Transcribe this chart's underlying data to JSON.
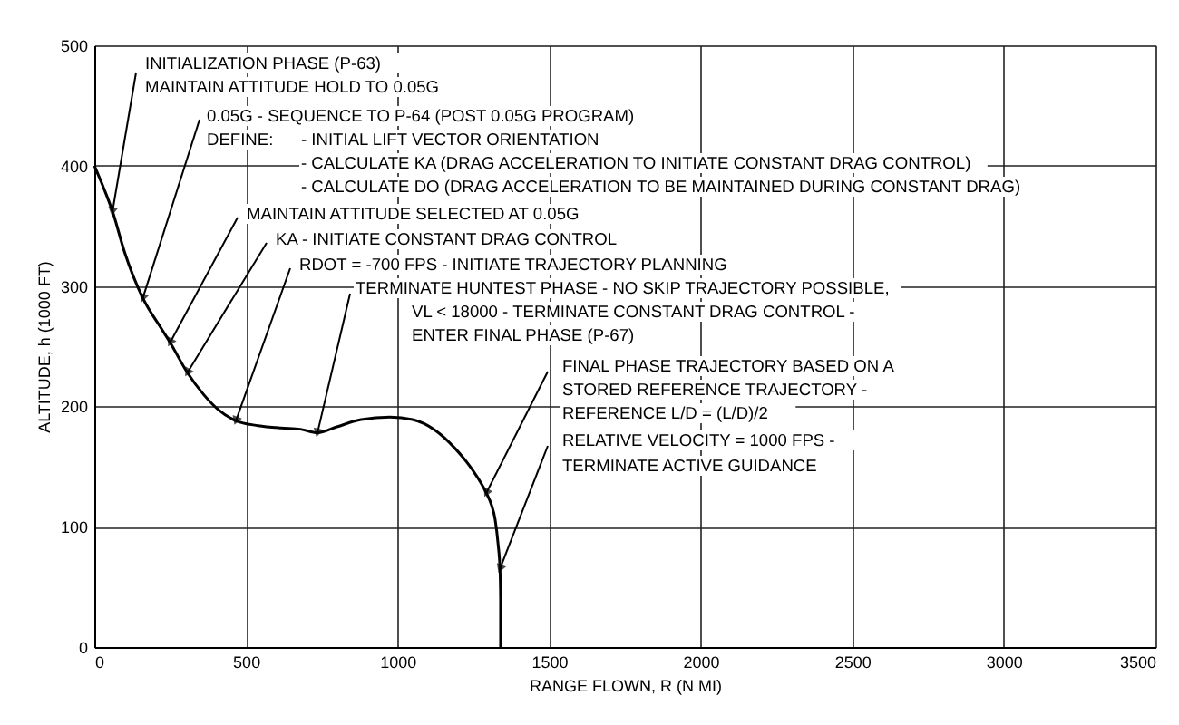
{
  "chart_data": {
    "type": "line",
    "xlabel": "RANGE FLOWN, R (N MI)",
    "ylabel": "ALTITUDE, h (1000 FT)",
    "xlim": [
      0,
      3500
    ],
    "ylim": [
      0,
      500
    ],
    "xticks": [
      0,
      500,
      1000,
      1500,
      2000,
      2500,
      3000,
      3500
    ],
    "yticks": [
      0,
      100,
      200,
      300,
      400,
      500
    ],
    "grid": true,
    "series": [
      {
        "color": "#000000",
        "x": [
          0,
          30,
          60,
          100,
          160,
          220,
          250,
          307,
          360,
          410,
          467,
          540,
          616,
          680,
          736,
          800,
          880,
          975,
          1050,
          1125,
          1190,
          1245,
          1293,
          1310,
          1322,
          1332,
          1338,
          1340,
          1340
        ],
        "values": [
          400,
          382,
          362,
          328,
          290,
          265,
          253,
          228,
          210,
          197,
          188,
          184,
          182,
          181,
          178,
          183,
          189,
          191,
          189,
          180,
          165,
          148,
          128,
          118,
          106,
          85,
          65,
          40,
          0
        ]
      }
    ],
    "annotations": [
      {
        "text": "INITIALIZATION PHASE (P-63)",
        "x": 60,
        "y": 362
      },
      "MAINTAIN ATTITUDE HOLD TO 0.05G",
      {
        "text": "0.05G - SEQUENCE TO P-64 (POST 0.05G PROGRAM)",
        "x": 160,
        "y": 290
      },
      "DEFINE:",
      "- INITIAL LIFT VECTOR ORIENTATION",
      "- CALCULATE KA (DRAG ACCELERATION TO INITIATE CONSTANT DRAG CONTROL)",
      "- CALCULATE DO (DRAG ACCELERATION TO BE MAINTAINED DURING CONSTANT DRAG)",
      {
        "text": "MAINTAIN ATTITUDE SELECTED AT 0.05G",
        "x": 250,
        "y": 253
      },
      {
        "text": "KA - INITIATE CONSTANT DRAG CONTROL",
        "x": 307,
        "y": 228
      },
      {
        "text": "RDOT = -700 FPS - INITIATE TRAJECTORY PLANNING",
        "x": 467,
        "y": 188
      },
      {
        "text": "TERMINATE HUNTEST PHASE - NO SKIP TRAJECTORY POSSIBLE,",
        "x": 736,
        "y": 178
      },
      "VL < 18000 - TERMINATE CONSTANT DRAG CONTROL -",
      "ENTER FINAL PHASE (P-67)",
      {
        "text": "FINAL PHASE TRAJECTORY BASED ON A",
        "x": 1293,
        "y": 128
      },
      "STORED REFERENCE TRAJECTORY -",
      "REFERENCE L/D = (L/D)/2",
      {
        "text": "RELATIVE VELOCITY = 1000 FPS -",
        "x": 1338,
        "y": 65
      },
      "TERMINATE ACTIVE GUIDANCE"
    ]
  }
}
